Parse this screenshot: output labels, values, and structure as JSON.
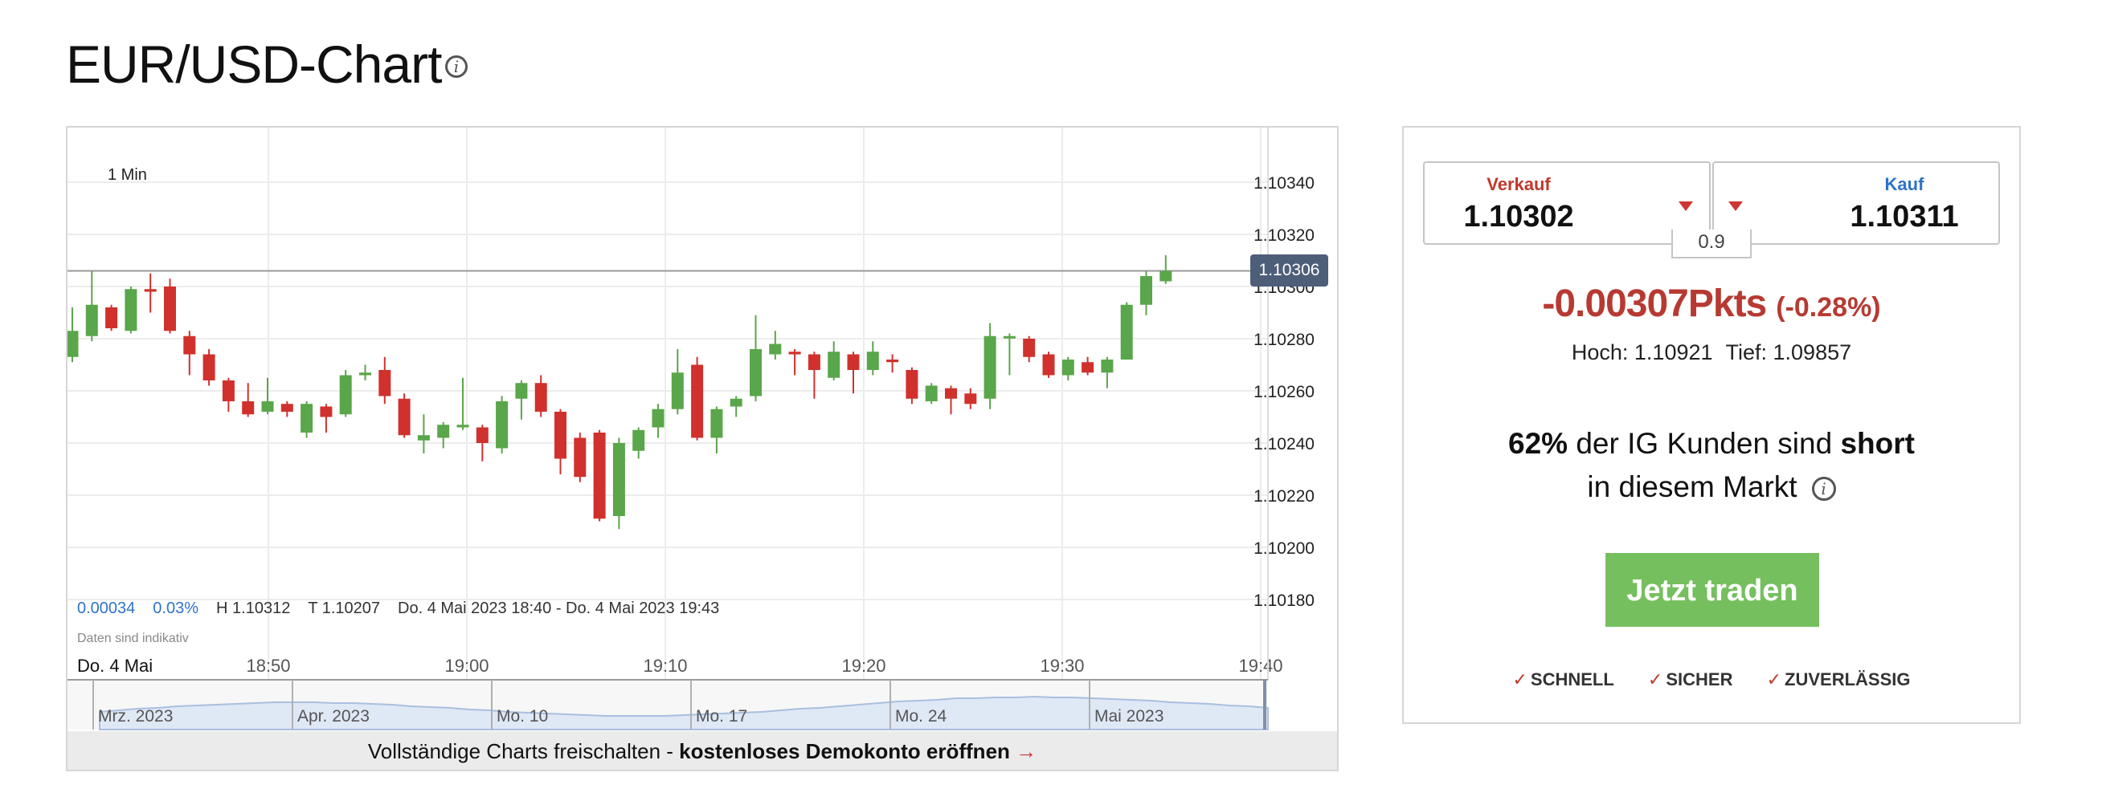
{
  "page": {
    "title": "EUR/USD-Chart",
    "info_glyph": "i"
  },
  "chart": {
    "interval": "1 Min",
    "current_price_badge": "1.10306",
    "stats": {
      "change_abs": "0.00034",
      "change_pct": "0.03%",
      "high": "H 1.10312",
      "low": "T 1.10207",
      "range": "Do. 4 Mai 2023 18:40 - Do. 4 Mai 2023 19:43"
    },
    "disclaimer": "Daten sind indikativ",
    "date_label": "Do. 4 Mai",
    "navigator_labels": [
      "Mrz. 2023",
      "Apr. 2023",
      "Mo. 10",
      "Mo. 17",
      "Mo. 24",
      "Mai 2023"
    ],
    "unlock": {
      "text": "Vollständige Charts freischalten -",
      "link": "kostenloses Demokonto eröffnen",
      "arrow": "→"
    },
    "colors": {
      "up": "#5aa64a",
      "down": "#d0312d",
      "badge": "#4d5e78"
    }
  },
  "chart_data": {
    "type": "candlestick",
    "x_ticks": [
      "18:50",
      "19:00",
      "19:10",
      "19:20",
      "19:30",
      "19:40"
    ],
    "y_ticks": [
      "1.10340",
      "1.10320",
      "1.10300",
      "1.10280",
      "1.10260",
      "1.10240",
      "1.10220",
      "1.10200",
      "1.10180"
    ],
    "ylim": [
      1.1017,
      1.1035
    ],
    "reference_line": 1.10306,
    "grid": true,
    "candles": [
      {
        "o": 1.10273,
        "c": 1.10283,
        "h": 1.10292,
        "l": 1.10271
      },
      {
        "o": 1.10281,
        "c": 1.10293,
        "h": 1.10306,
        "l": 1.10279
      },
      {
        "o": 1.10292,
        "c": 1.10284,
        "h": 1.10293,
        "l": 1.10283
      },
      {
        "o": 1.10283,
        "c": 1.10299,
        "h": 1.103,
        "l": 1.10282
      },
      {
        "o": 1.10299,
        "c": 1.10298,
        "h": 1.10305,
        "l": 1.1029
      },
      {
        "o": 1.103,
        "c": 1.10283,
        "h": 1.10303,
        "l": 1.10282
      },
      {
        "o": 1.10281,
        "c": 1.10274,
        "h": 1.10283,
        "l": 1.10266
      },
      {
        "o": 1.10274,
        "c": 1.10264,
        "h": 1.10276,
        "l": 1.10262
      },
      {
        "o": 1.10264,
        "c": 1.10256,
        "h": 1.10265,
        "l": 1.10252
      },
      {
        "o": 1.10256,
        "c": 1.10251,
        "h": 1.10263,
        "l": 1.1025
      },
      {
        "o": 1.10252,
        "c": 1.10256,
        "h": 1.10265,
        "l": 1.10251
      },
      {
        "o": 1.10255,
        "c": 1.10252,
        "h": 1.10256,
        "l": 1.1025
      },
      {
        "o": 1.10244,
        "c": 1.10255,
        "h": 1.10256,
        "l": 1.10242
      },
      {
        "o": 1.10254,
        "c": 1.1025,
        "h": 1.10255,
        "l": 1.10244
      },
      {
        "o": 1.10251,
        "c": 1.10266,
        "h": 1.10268,
        "l": 1.1025
      },
      {
        "o": 1.10266,
        "c": 1.10267,
        "h": 1.1027,
        "l": 1.10264
      },
      {
        "o": 1.10268,
        "c": 1.10258,
        "h": 1.10273,
        "l": 1.10255
      },
      {
        "o": 1.10257,
        "c": 1.10243,
        "h": 1.10259,
        "l": 1.10242
      },
      {
        "o": 1.10241,
        "c": 1.10243,
        "h": 1.10251,
        "l": 1.10236
      },
      {
        "o": 1.10242,
        "c": 1.10247,
        "h": 1.10248,
        "l": 1.10238
      },
      {
        "o": 1.10246,
        "c": 1.10247,
        "h": 1.10265,
        "l": 1.10245
      },
      {
        "o": 1.10246,
        "c": 1.1024,
        "h": 1.10247,
        "l": 1.10233
      },
      {
        "o": 1.10238,
        "c": 1.10256,
        "h": 1.10258,
        "l": 1.10236
      },
      {
        "o": 1.10257,
        "c": 1.10263,
        "h": 1.10264,
        "l": 1.10249
      },
      {
        "o": 1.10263,
        "c": 1.10252,
        "h": 1.10266,
        "l": 1.1025
      },
      {
        "o": 1.10252,
        "c": 1.10234,
        "h": 1.10253,
        "l": 1.10228
      },
      {
        "o": 1.10242,
        "c": 1.10227,
        "h": 1.10244,
        "l": 1.10225
      },
      {
        "o": 1.10244,
        "c": 1.10211,
        "h": 1.10245,
        "l": 1.1021
      },
      {
        "o": 1.10212,
        "c": 1.1024,
        "h": 1.10242,
        "l": 1.10207
      },
      {
        "o": 1.10237,
        "c": 1.10245,
        "h": 1.10246,
        "l": 1.10234
      },
      {
        "o": 1.10246,
        "c": 1.10253,
        "h": 1.10255,
        "l": 1.10242
      },
      {
        "o": 1.10253,
        "c": 1.10267,
        "h": 1.10276,
        "l": 1.10251
      },
      {
        "o": 1.1027,
        "c": 1.10242,
        "h": 1.10273,
        "l": 1.10241
      },
      {
        "o": 1.10242,
        "c": 1.10253,
        "h": 1.10254,
        "l": 1.10236
      },
      {
        "o": 1.10254,
        "c": 1.10257,
        "h": 1.10258,
        "l": 1.1025
      },
      {
        "o": 1.10258,
        "c": 1.10276,
        "h": 1.10289,
        "l": 1.10256
      },
      {
        "o": 1.10274,
        "c": 1.10278,
        "h": 1.10283,
        "l": 1.10272
      },
      {
        "o": 1.10275,
        "c": 1.10274,
        "h": 1.10276,
        "l": 1.10266
      },
      {
        "o": 1.10274,
        "c": 1.10268,
        "h": 1.10275,
        "l": 1.10257
      },
      {
        "o": 1.10265,
        "c": 1.10275,
        "h": 1.10279,
        "l": 1.10264
      },
      {
        "o": 1.10274,
        "c": 1.10268,
        "h": 1.10275,
        "l": 1.10259
      },
      {
        "o": 1.10268,
        "c": 1.10275,
        "h": 1.10279,
        "l": 1.10266
      },
      {
        "o": 1.10272,
        "c": 1.10271,
        "h": 1.10274,
        "l": 1.10267
      },
      {
        "o": 1.10268,
        "c": 1.10257,
        "h": 1.10269,
        "l": 1.10255
      },
      {
        "o": 1.10256,
        "c": 1.10262,
        "h": 1.10263,
        "l": 1.10255
      },
      {
        "o": 1.10261,
        "c": 1.10257,
        "h": 1.10262,
        "l": 1.10251
      },
      {
        "o": 1.10259,
        "c": 1.10255,
        "h": 1.10261,
        "l": 1.10253
      },
      {
        "o": 1.10257,
        "c": 1.10281,
        "h": 1.10286,
        "l": 1.10253
      },
      {
        "o": 1.10281,
        "c": 1.10281,
        "h": 1.10282,
        "l": 1.10266
      },
      {
        "o": 1.1028,
        "c": 1.10273,
        "h": 1.10281,
        "l": 1.10271
      },
      {
        "o": 1.10274,
        "c": 1.10266,
        "h": 1.10275,
        "l": 1.10265
      },
      {
        "o": 1.10266,
        "c": 1.10272,
        "h": 1.10273,
        "l": 1.10264
      },
      {
        "o": 1.10271,
        "c": 1.10267,
        "h": 1.10273,
        "l": 1.10266
      },
      {
        "o": 1.10267,
        "c": 1.10272,
        "h": 1.10273,
        "l": 1.10261
      },
      {
        "o": 1.10272,
        "c": 1.10293,
        "h": 1.10294,
        "l": 1.10272
      },
      {
        "o": 1.10293,
        "c": 1.10304,
        "h": 1.10306,
        "l": 1.10289
      },
      {
        "o": 1.10302,
        "c": 1.10306,
        "h": 1.10312,
        "l": 1.10301
      }
    ]
  },
  "trade": {
    "sell": {
      "label": "Verkauf",
      "value": "1.10302"
    },
    "buy": {
      "label": "Kauf",
      "value": "1.10311"
    },
    "spread": "0.9",
    "change_pts": "-0.00307Pkts",
    "change_pct": "(-0.28%)",
    "high": "Hoch: 1.10921",
    "low": "Tief: 1.09857",
    "sentiment": {
      "pct": "62%",
      "text": "der IG Kunden sind",
      "direction": "short",
      "line2": "in diesem Markt",
      "info_glyph": "i"
    },
    "button": "Jetzt traden",
    "features": [
      {
        "check": "✓",
        "label": "SCHNELL"
      },
      {
        "check": "✓",
        "label": "SICHER"
      },
      {
        "check": "✓",
        "label": "ZUVERLÄSSIG"
      }
    ]
  }
}
